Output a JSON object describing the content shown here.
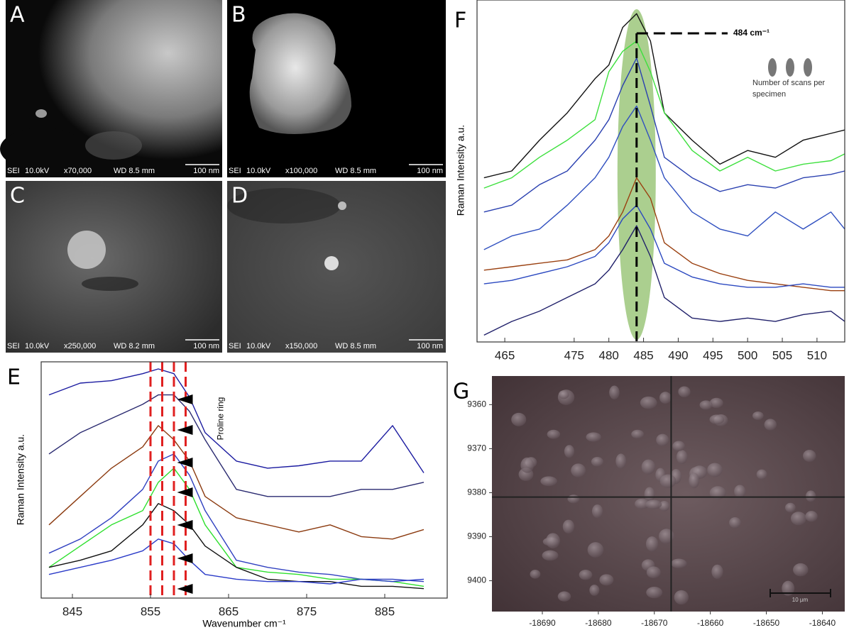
{
  "panels": [
    {
      "label": "A",
      "detector": "SEI",
      "voltage": "10.0kV",
      "magnification": "x70,000",
      "wd": "WD 8.5 mm",
      "scale": "100 nm"
    },
    {
      "label": "B",
      "detector": "SEI",
      "voltage": "10.0kV",
      "magnification": "x100,000",
      "wd": "WD 8.5 mm",
      "scale": "100 nm"
    },
    {
      "label": "C",
      "detector": "SEI",
      "voltage": "10.0kV",
      "magnification": "x250,000",
      "wd": "WD 8.2 mm",
      "scale": "100 nm"
    },
    {
      "label": "D",
      "detector": "SEI",
      "voltage": "10.0kV",
      "magnification": "x150,000",
      "wd": "WD 8.5 mm",
      "scale": "100 nm"
    }
  ],
  "chart_data": [
    {
      "type": "line",
      "panel": "E",
      "xlabel": "Wavenumber cm⁻¹",
      "ylabel": "Raman Intensity a.u.",
      "annotation": "Proline ring",
      "x": [
        842,
        846,
        850,
        854,
        856,
        858,
        860,
        862,
        866,
        870,
        874,
        878,
        882,
        886,
        890
      ],
      "xlim": [
        841,
        893
      ],
      "xticks": [
        845,
        855,
        865,
        875,
        885
      ],
      "ylim": [
        0,
        100
      ],
      "reference_lines": [
        855,
        856.5,
        858,
        859.5
      ],
      "reference_color": "#e02020",
      "series": [
        {
          "color": "#1a1aa0",
          "values": [
            86,
            91,
            92,
            95,
            97,
            95,
            85,
            70,
            58,
            55,
            56,
            58,
            58,
            73,
            53
          ]
        },
        {
          "color": "#2a2a70",
          "values": [
            61,
            70,
            76,
            82,
            86,
            86,
            79,
            67,
            46,
            43,
            43,
            43,
            46,
            46,
            49
          ]
        },
        {
          "color": "#8b3a0f",
          "values": [
            31,
            43,
            55,
            64,
            73,
            67,
            58,
            43,
            34,
            31,
            28,
            31,
            26,
            25,
            29
          ]
        },
        {
          "color": "#3040c0",
          "values": [
            19,
            25,
            34,
            46,
            58,
            61,
            52,
            37,
            16,
            13,
            11,
            10,
            8,
            8,
            7
          ]
        },
        {
          "color": "#2ee02e",
          "values": [
            13,
            22,
            31,
            37,
            49,
            55,
            46,
            31,
            13,
            11,
            10,
            8,
            8,
            7,
            5
          ]
        },
        {
          "color": "#111111",
          "values": [
            13,
            16,
            20,
            31,
            40,
            37,
            31,
            22,
            13,
            8,
            7,
            7,
            5,
            5,
            4
          ]
        },
        {
          "color": "#2a3ac8",
          "values": [
            10,
            13,
            16,
            20,
            25,
            23,
            16,
            10,
            8,
            7,
            7,
            6,
            8,
            7,
            8
          ]
        }
      ]
    },
    {
      "type": "line",
      "panel": "F",
      "ylabel": "Raman Intensity a.u.",
      "x": [
        462,
        466,
        470,
        474,
        478,
        480,
        482,
        484,
        486,
        488,
        492,
        496,
        500,
        504,
        508,
        512,
        514
      ],
      "xlim": [
        461,
        514
      ],
      "xticks": [
        465,
        475,
        480,
        485,
        490,
        495,
        500,
        505,
        510
      ],
      "ylim": [
        0,
        100
      ],
      "peak_x": 484,
      "peak_label": "484 cm⁻¹",
      "highlight_color": "#8fbf6a",
      "note": "Number of scans per specimen",
      "series": [
        {
          "color": "#111111",
          "values": [
            48,
            50,
            59,
            67,
            77,
            81,
            92,
            96,
            88,
            67,
            59,
            52,
            56,
            54,
            59,
            61,
            62
          ]
        },
        {
          "color": "#3ee03e",
          "values": [
            45,
            48,
            54,
            59,
            65,
            79,
            85,
            88,
            79,
            67,
            56,
            50,
            54,
            50,
            52,
            53,
            55
          ]
        },
        {
          "color": "#2a40b0",
          "values": [
            38,
            40,
            46,
            50,
            59,
            65,
            75,
            83,
            69,
            54,
            48,
            44,
            46,
            45,
            48,
            49,
            50
          ]
        },
        {
          "color": "#3050c0",
          "values": [
            27,
            31,
            33,
            40,
            48,
            54,
            63,
            69,
            59,
            48,
            38,
            33,
            31,
            38,
            33,
            38,
            33
          ]
        },
        {
          "color": "#9a4010",
          "values": [
            21,
            22,
            23,
            24,
            27,
            31,
            38,
            48,
            42,
            29,
            23,
            20,
            18,
            17,
            16,
            15,
            15
          ]
        },
        {
          "color": "#2a48c0",
          "values": [
            17,
            18,
            20,
            22,
            25,
            29,
            36,
            40,
            33,
            23,
            19,
            17,
            16,
            16,
            17,
            16,
            16
          ]
        },
        {
          "color": "#20206a",
          "values": [
            2,
            6,
            9,
            13,
            17,
            21,
            27,
            34,
            25,
            13,
            7,
            6,
            7,
            6,
            8,
            9,
            6
          ]
        }
      ]
    },
    {
      "type": "image",
      "panel": "G",
      "xlim": [
        -18699,
        -18636
      ],
      "ylim": [
        9353.5,
        9407
      ],
      "y_inverted": true,
      "xticks": [
        -18690,
        -18680,
        -18670,
        -18660,
        -18650,
        -18640
      ],
      "yticks": [
        9360,
        9370,
        9380,
        9390,
        9400
      ],
      "crosshair": {
        "x": -18667,
        "y": 9381
      },
      "scale_bar": "10 µm"
    }
  ]
}
